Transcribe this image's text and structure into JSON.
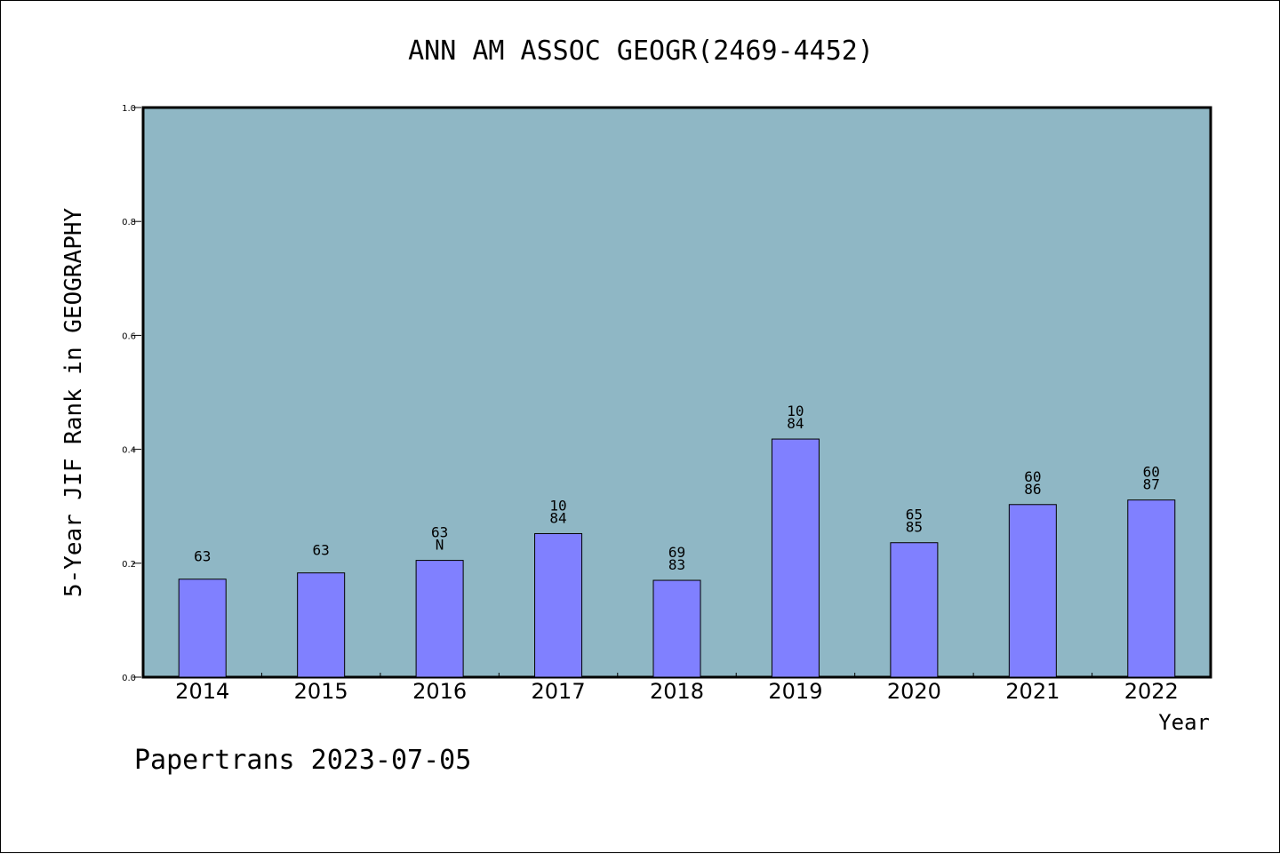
{
  "chart_data": {
    "type": "bar",
    "title": "ANN AM ASSOC GEOGR(2469-4452)",
    "ylabel": "5-Year JIF Rank in GEOGRAPHY",
    "xlabel": "Year",
    "ylim": [
      0.0,
      1.0
    ],
    "yticks": [
      "0.0",
      "0.2",
      "0.4",
      "0.6",
      "0.8",
      "1.0"
    ],
    "categories": [
      "2014",
      "2015",
      "2016",
      "2017",
      "2018",
      "2019",
      "2020",
      "2021",
      "2022"
    ],
    "values": [
      0.172,
      0.183,
      0.205,
      0.252,
      0.17,
      0.418,
      0.236,
      0.303,
      0.311
    ],
    "labels": [
      [
        "63"
      ],
      [
        "63"
      ],
      [
        "63",
        "N"
      ],
      [
        "10",
        "84"
      ],
      [
        "69",
        "83"
      ],
      [
        "10",
        "84"
      ],
      [
        "65",
        "85"
      ],
      [
        "60",
        "86"
      ],
      [
        "60",
        "87"
      ]
    ],
    "colors": {
      "plot_background": "#8fb7c5",
      "bar_fill": "#8080ff",
      "bar_stroke": "#000000"
    },
    "grid": false
  },
  "footer": "Papertrans 2023-07-05"
}
